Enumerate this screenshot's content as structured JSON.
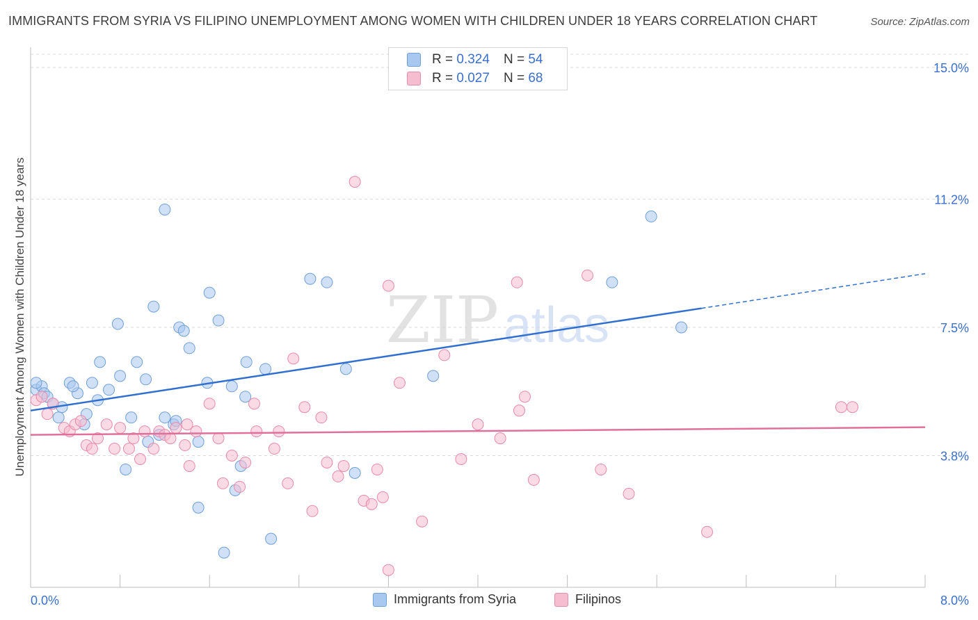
{
  "header": {
    "title": "IMMIGRANTS FROM SYRIA VS FILIPINO UNEMPLOYMENT AMONG WOMEN WITH CHILDREN UNDER 18 YEARS CORRELATION CHART",
    "source": "Source: ZipAtlas.com"
  },
  "watermark": {
    "zip": "ZIP",
    "atlas": "atlas"
  },
  "legend": {
    "r_label": "R =",
    "n_label": "N =",
    "rows": [
      {
        "r": "0.324",
        "n": "54"
      },
      {
        "r": "0.027",
        "n": "68"
      }
    ]
  },
  "colors": {
    "syria_fill": "#a9c8f0",
    "syria_stroke": "#6f9fd8",
    "syria_line": "#2f6fcf",
    "filipino_fill": "#f6bcd0",
    "filipino_stroke": "#e88aab",
    "filipino_line": "#e0709a",
    "tick_text": "#3a6fcc",
    "grid": "#d9d9d9"
  },
  "chart_data": {
    "type": "scatter",
    "title": "IMMIGRANTS FROM SYRIA VS FILIPINO UNEMPLOYMENT AMONG WOMEN WITH CHILDREN UNDER 18 YEARS CORRELATION CHART",
    "xlabel": "",
    "ylabel": "Unemployment Among Women with Children Under 18 years",
    "xlim": [
      0,
      8.0
    ],
    "ylim": [
      0,
      15.0
    ],
    "x_tick_labels": [
      "0.0%",
      "8.0%"
    ],
    "y_ticks": [
      3.8,
      7.5,
      11.2,
      15.0
    ],
    "y_tick_labels": [
      "3.8%",
      "7.5%",
      "11.2%",
      "15.0%"
    ],
    "grid": true,
    "legend_position": "top-center",
    "series": [
      {
        "name": "Immigrants from Syria",
        "r": 0.324,
        "n": 54,
        "trend": {
          "x0": 0.0,
          "y0": 5.1,
          "x1": 6.0,
          "y1": 8.05,
          "dash_x1": 8.0,
          "dash_y1": 9.05
        },
        "points": [
          [
            0.05,
            5.7
          ],
          [
            0.1,
            5.8
          ],
          [
            0.12,
            5.6
          ],
          [
            0.15,
            5.5
          ],
          [
            0.2,
            5.3
          ],
          [
            0.28,
            5.2
          ],
          [
            0.35,
            5.9
          ],
          [
            0.42,
            5.6
          ],
          [
            0.5,
            5.0
          ],
          [
            0.6,
            5.4
          ],
          [
            0.7,
            5.7
          ],
          [
            0.8,
            6.1
          ],
          [
            0.25,
            4.9
          ],
          [
            0.48,
            4.7
          ],
          [
            0.38,
            5.8
          ],
          [
            0.55,
            5.9
          ],
          [
            0.62,
            6.5
          ],
          [
            0.78,
            7.6
          ],
          [
            0.95,
            6.5
          ],
          [
            1.03,
            6.0
          ],
          [
            0.9,
            4.9
          ],
          [
            0.85,
            3.4
          ],
          [
            1.05,
            4.2
          ],
          [
            1.1,
            8.1
          ],
          [
            1.2,
            4.9
          ],
          [
            1.28,
            4.7
          ],
          [
            1.3,
            4.8
          ],
          [
            1.33,
            7.5
          ],
          [
            1.37,
            7.4
          ],
          [
            1.42,
            6.9
          ],
          [
            1.5,
            4.2
          ],
          [
            1.5,
            2.3
          ],
          [
            1.58,
            5.9
          ],
          [
            1.6,
            8.5
          ],
          [
            1.68,
            7.7
          ],
          [
            1.73,
            1.0
          ],
          [
            1.8,
            5.8
          ],
          [
            1.83,
            2.8
          ],
          [
            1.88,
            3.5
          ],
          [
            1.92,
            5.5
          ],
          [
            1.93,
            6.5
          ],
          [
            2.1,
            6.3
          ],
          [
            2.15,
            1.4
          ],
          [
            2.5,
            8.9
          ],
          [
            2.65,
            8.8
          ],
          [
            2.82,
            6.3
          ],
          [
            2.9,
            3.3
          ],
          [
            3.6,
            6.1
          ],
          [
            1.2,
            10.9
          ],
          [
            5.55,
            10.7
          ],
          [
            5.2,
            8.8
          ],
          [
            5.82,
            7.5
          ],
          [
            0.05,
            5.9
          ],
          [
            1.15,
            4.4
          ]
        ]
      },
      {
        "name": "Filipinos",
        "r": 0.027,
        "n": 68,
        "trend": {
          "x0": 0.0,
          "y0": 4.4,
          "x1": 8.0,
          "y1": 4.62
        },
        "points": [
          [
            0.05,
            5.4
          ],
          [
            0.1,
            5.5
          ],
          [
            0.15,
            5.0
          ],
          [
            0.2,
            5.3
          ],
          [
            0.3,
            4.6
          ],
          [
            0.35,
            4.5
          ],
          [
            0.4,
            4.7
          ],
          [
            0.45,
            4.8
          ],
          [
            0.5,
            4.1
          ],
          [
            0.55,
            4.0
          ],
          [
            0.6,
            4.3
          ],
          [
            0.68,
            4.7
          ],
          [
            0.75,
            4.0
          ],
          [
            0.8,
            4.6
          ],
          [
            0.88,
            4.0
          ],
          [
            0.92,
            4.3
          ],
          [
            0.98,
            3.7
          ],
          [
            1.02,
            4.5
          ],
          [
            1.1,
            4.0
          ],
          [
            1.15,
            4.5
          ],
          [
            1.2,
            4.4
          ],
          [
            1.25,
            4.3
          ],
          [
            1.3,
            4.6
          ],
          [
            1.38,
            4.1
          ],
          [
            1.42,
            3.5
          ],
          [
            1.48,
            4.5
          ],
          [
            1.6,
            5.3
          ],
          [
            1.68,
            4.3
          ],
          [
            1.72,
            3.0
          ],
          [
            1.8,
            3.8
          ],
          [
            1.87,
            2.9
          ],
          [
            1.92,
            3.6
          ],
          [
            2.0,
            5.3
          ],
          [
            2.02,
            4.5
          ],
          [
            2.18,
            4.0
          ],
          [
            2.22,
            4.5
          ],
          [
            2.3,
            3.0
          ],
          [
            2.35,
            6.6
          ],
          [
            2.52,
            2.2
          ],
          [
            2.45,
            5.2
          ],
          [
            2.6,
            4.9
          ],
          [
            2.65,
            3.6
          ],
          [
            2.75,
            3.2
          ],
          [
            2.8,
            3.5
          ],
          [
            2.98,
            2.5
          ],
          [
            3.05,
            2.4
          ],
          [
            3.1,
            3.4
          ],
          [
            3.15,
            2.6
          ],
          [
            3.2,
            0.5
          ],
          [
            3.2,
            8.7
          ],
          [
            3.3,
            5.9
          ],
          [
            3.5,
            1.9
          ],
          [
            3.7,
            6.7
          ],
          [
            3.85,
            3.7
          ],
          [
            4.0,
            4.7
          ],
          [
            4.2,
            4.3
          ],
          [
            4.35,
            8.8
          ],
          [
            4.37,
            5.1
          ],
          [
            4.42,
            5.5
          ],
          [
            4.5,
            3.1
          ],
          [
            4.98,
            9.0
          ],
          [
            5.1,
            3.4
          ],
          [
            5.35,
            2.7
          ],
          [
            6.05,
            1.6
          ],
          [
            7.25,
            5.2
          ],
          [
            7.35,
            5.2
          ],
          [
            2.9,
            11.7
          ],
          [
            1.4,
            4.7
          ]
        ]
      }
    ]
  },
  "bottom_legend": [
    {
      "label": "Immigrants from Syria"
    },
    {
      "label": "Filipinos"
    }
  ]
}
